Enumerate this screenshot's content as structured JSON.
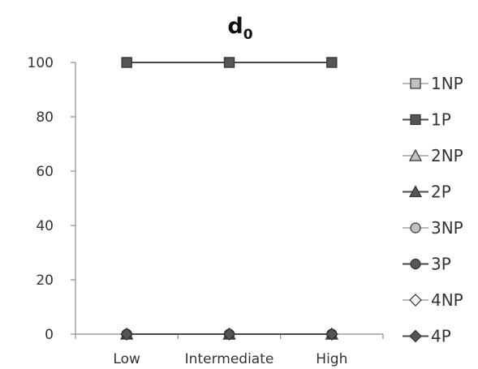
{
  "chart_data": {
    "type": "line",
    "title": "d",
    "title_subscript": "0",
    "xlabel": "",
    "ylabel": "",
    "categories": [
      "Low",
      "Intermediate",
      "High"
    ],
    "ylim": [
      0,
      100
    ],
    "yticks": [
      0,
      20,
      40,
      60,
      80,
      100
    ],
    "grid": false,
    "legend_position": "right",
    "series": [
      {
        "name": "1NP",
        "values": [
          100,
          100,
          100
        ],
        "marker": "square",
        "line_color": "#b8b8b8",
        "marker_color": "#c0c0c0"
      },
      {
        "name": "1P",
        "values": [
          100,
          100,
          100
        ],
        "marker": "square",
        "line_color": "#4a4a4a",
        "marker_color": "#555555"
      },
      {
        "name": "2NP",
        "values": [
          0,
          0,
          0
        ],
        "marker": "triangle",
        "line_color": "#b8b8b8",
        "marker_color": "#c0c0c0"
      },
      {
        "name": "2P",
        "values": [
          0,
          0,
          0
        ],
        "marker": "triangle",
        "line_color": "#4a4a4a",
        "marker_color": "#555555"
      },
      {
        "name": "3NP",
        "values": [
          0,
          0,
          0
        ],
        "marker": "circle",
        "line_color": "#b8b8b8",
        "marker_color": "#c0c0c0"
      },
      {
        "name": "3P",
        "values": [
          0,
          0,
          0
        ],
        "marker": "circle",
        "line_color": "#4a4a4a",
        "marker_color": "#555555"
      },
      {
        "name": "4NP",
        "values": [
          0,
          0,
          0
        ],
        "marker": "diamond",
        "line_color": "#b8b8b8",
        "marker_color": "#f2f2f2"
      },
      {
        "name": "4P",
        "values": [
          0,
          0,
          0
        ],
        "marker": "diamond",
        "line_color": "#4a4a4a",
        "marker_color": "#555555"
      }
    ]
  }
}
